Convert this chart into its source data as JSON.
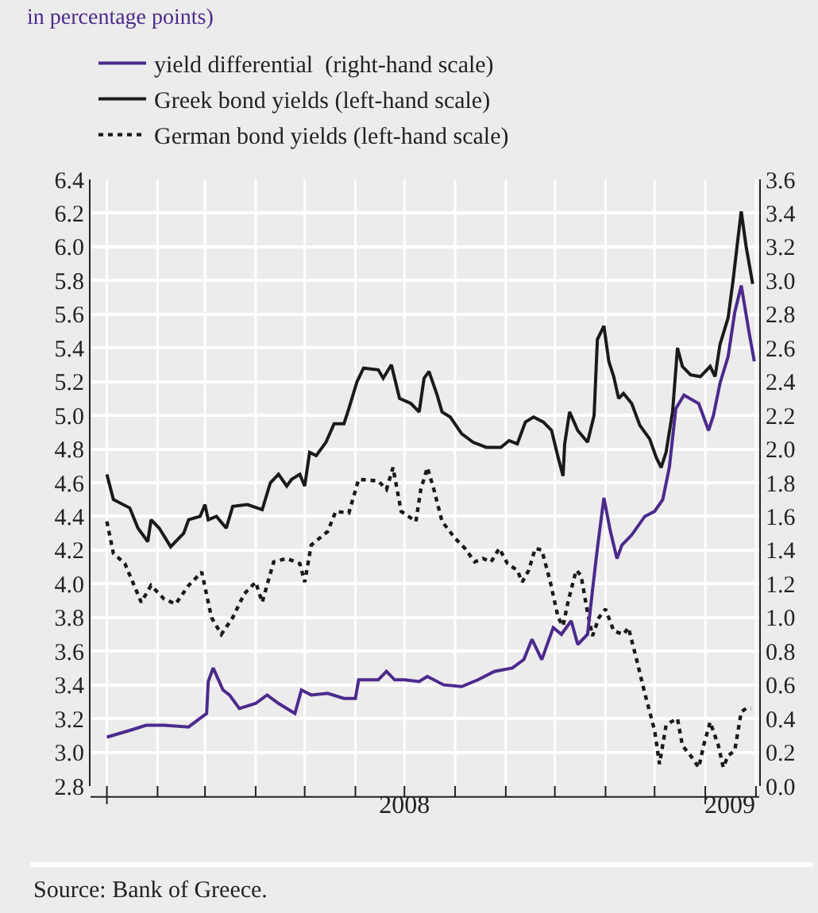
{
  "chart_data": {
    "type": "line",
    "subtitle": "in percentage points)",
    "xlim": [
      "2007-12-22",
      "2009-02-03"
    ],
    "xticks": [
      {
        "value": "2008-01-01",
        "label": null
      },
      {
        "value": "2008-02-01",
        "label": null
      },
      {
        "value": "2008-03-01",
        "label": null
      },
      {
        "value": "2008-04-01",
        "label": null
      },
      {
        "value": "2008-05-01",
        "label": null
      },
      {
        "value": "2008-06-01",
        "label": null
      },
      {
        "value": "2008-07-01",
        "label": null
      },
      {
        "value": "2008-08-01",
        "label": null
      },
      {
        "value": "2008-09-01",
        "label": null
      },
      {
        "value": "2008-10-01",
        "label": null
      },
      {
        "value": "2008-11-01",
        "label": null
      },
      {
        "value": "2008-12-01",
        "label": null
      },
      {
        "value": "2009-01-01",
        "label": null
      },
      {
        "value": "2009-02-01",
        "label": null
      },
      {
        "value": "2008-07-01",
        "label": "2008"
      },
      {
        "value": "2009-01-16",
        "label": "2009"
      }
    ],
    "ylim": [
      2.8,
      6.4
    ],
    "yticks": [
      {
        "value": 2.8,
        "label": "2.8"
      },
      {
        "value": 3.0,
        "label": "3.0"
      },
      {
        "value": 3.2,
        "label": "3.2"
      },
      {
        "value": 3.4,
        "label": "3.4"
      },
      {
        "value": 3.6,
        "label": "3.6"
      },
      {
        "value": 3.8,
        "label": "3.8"
      },
      {
        "value": 4.0,
        "label": "4.0"
      },
      {
        "value": 4.2,
        "label": "4.2"
      },
      {
        "value": 4.4,
        "label": "4.4"
      },
      {
        "value": 4.6,
        "label": "4.6"
      },
      {
        "value": 4.8,
        "label": "4.8"
      },
      {
        "value": 5.0,
        "label": "5.0"
      },
      {
        "value": 5.2,
        "label": "5.2"
      },
      {
        "value": 5.4,
        "label": "5.4"
      },
      {
        "value": 5.6,
        "label": "5.6"
      },
      {
        "value": 5.8,
        "label": "5.8"
      },
      {
        "value": 6.0,
        "label": "6.0"
      },
      {
        "value": 6.2,
        "label": "6.2"
      },
      {
        "value": 6.4,
        "label": "6.4"
      }
    ],
    "y2lim": [
      0.0,
      3.6
    ],
    "y2ticks": [
      {
        "value": 0.0,
        "label": "0.0"
      },
      {
        "value": 0.2,
        "label": "0.2"
      },
      {
        "value": 0.4,
        "label": "0.4"
      },
      {
        "value": 0.6,
        "label": "0.6"
      },
      {
        "value": 0.8,
        "label": "0.8"
      },
      {
        "value": 1.0,
        "label": "1.0"
      },
      {
        "value": 1.2,
        "label": "1.2"
      },
      {
        "value": 1.4,
        "label": "1.4"
      },
      {
        "value": 1.6,
        "label": "1.6"
      },
      {
        "value": 1.8,
        "label": "1.8"
      },
      {
        "value": 2.0,
        "label": "2.0"
      },
      {
        "value": 2.2,
        "label": "2.2"
      },
      {
        "value": 2.4,
        "label": "2.4"
      },
      {
        "value": 2.6,
        "label": "2.6"
      },
      {
        "value": 2.8,
        "label": "2.8"
      },
      {
        "value": 3.0,
        "label": "3.0"
      },
      {
        "value": 3.2,
        "label": "3.2"
      },
      {
        "value": 3.4,
        "label": "3.4"
      },
      {
        "value": 3.6,
        "label": "3.6"
      }
    ],
    "grid": true,
    "legend": "top",
    "annotations": [
      "Source: Bank of Greece."
    ],
    "series": [
      {
        "name": "yield differential  (right-hand scale)",
        "color": "#4b2a8c",
        "axis": "y2",
        "line_style": "solid",
        "x": [
          "2008-01-01",
          "2008-01-15",
          "2008-01-25",
          "2008-02-05",
          "2008-02-20",
          "2008-03-02",
          "2008-03-03",
          "2008-03-06",
          "2008-03-12",
          "2008-03-16",
          "2008-03-22",
          "2008-04-01",
          "2008-04-08",
          "2008-04-15",
          "2008-04-25",
          "2008-04-29",
          "2008-05-05",
          "2008-05-15",
          "2008-05-25",
          "2008-06-01",
          "2008-06-03",
          "2008-06-15",
          "2008-06-20",
          "2008-06-25",
          "2008-07-01",
          "2008-07-10",
          "2008-07-15",
          "2008-07-25",
          "2008-08-05",
          "2008-08-15",
          "2008-08-25",
          "2008-09-05",
          "2008-09-12",
          "2008-09-17",
          "2008-09-23",
          "2008-09-30",
          "2008-10-05",
          "2008-10-11",
          "2008-10-15",
          "2008-10-21",
          "2008-10-24",
          "2008-10-27",
          "2008-10-31",
          "2008-11-04",
          "2008-11-08",
          "2008-11-11",
          "2008-11-17",
          "2008-11-25",
          "2008-12-01",
          "2008-12-06",
          "2008-12-10",
          "2008-12-14",
          "2008-12-19",
          "2008-12-28",
          "2009-01-03",
          "2009-01-06",
          "2009-01-10",
          "2009-01-15",
          "2009-01-19",
          "2009-01-23",
          "2009-01-28",
          "2009-01-31"
        ],
        "values": [
          0.29,
          0.33,
          0.36,
          0.36,
          0.35,
          0.43,
          0.62,
          0.7,
          0.57,
          0.54,
          0.46,
          0.49,
          0.54,
          0.49,
          0.43,
          0.57,
          0.54,
          0.55,
          0.52,
          0.52,
          0.63,
          0.63,
          0.68,
          0.63,
          0.63,
          0.62,
          0.65,
          0.6,
          0.59,
          0.63,
          0.68,
          0.7,
          0.75,
          0.87,
          0.75,
          0.94,
          0.9,
          0.98,
          0.84,
          0.9,
          1.16,
          1.41,
          1.71,
          1.51,
          1.35,
          1.43,
          1.49,
          1.6,
          1.63,
          1.7,
          1.89,
          2.24,
          2.32,
          2.27,
          2.11,
          2.2,
          2.39,
          2.55,
          2.81,
          2.97,
          2.68,
          2.52
        ]
      },
      {
        "name": "Greek bond yields (left-hand scale)",
        "color": "#1a1a1a",
        "axis": "y",
        "line_style": "solid",
        "x": [
          "2008-01-01",
          "2008-01-05",
          "2008-01-15",
          "2008-01-20",
          "2008-01-26",
          "2008-01-28",
          "2008-02-02",
          "2008-02-09",
          "2008-02-17",
          "2008-02-20",
          "2008-02-27",
          "2008-03-01",
          "2008-03-03",
          "2008-03-08",
          "2008-03-14",
          "2008-03-18",
          "2008-03-27",
          "2008-04-02",
          "2008-04-05",
          "2008-04-10",
          "2008-04-15",
          "2008-04-20",
          "2008-04-23",
          "2008-04-28",
          "2008-05-01",
          "2008-05-04",
          "2008-05-08",
          "2008-05-14",
          "2008-05-19",
          "2008-05-25",
          "2008-05-28",
          "2008-06-02",
          "2008-06-06",
          "2008-06-15",
          "2008-06-18",
          "2008-06-23",
          "2008-06-28",
          "2008-07-05",
          "2008-07-10",
          "2008-07-13",
          "2008-07-16",
          "2008-07-21",
          "2008-07-24",
          "2008-07-29",
          "2008-08-05",
          "2008-08-12",
          "2008-08-20",
          "2008-08-29",
          "2008-09-03",
          "2008-09-08",
          "2008-09-13",
          "2008-09-18",
          "2008-09-24",
          "2008-09-29",
          "2008-10-03",
          "2008-10-06",
          "2008-10-07",
          "2008-10-10",
          "2008-10-15",
          "2008-10-21",
          "2008-10-25",
          "2008-10-27",
          "2008-10-31",
          "2008-11-03",
          "2008-11-06",
          "2008-11-09",
          "2008-11-12",
          "2008-11-17",
          "2008-11-22",
          "2008-11-28",
          "2008-12-02",
          "2008-12-05",
          "2008-12-08",
          "2008-12-12",
          "2008-12-15",
          "2008-12-18",
          "2008-12-23",
          "2008-12-29",
          "2009-01-04",
          "2009-01-07",
          "2009-01-10",
          "2009-01-15",
          "2009-01-18",
          "2009-01-21",
          "2009-01-23",
          "2009-01-26",
          "2009-01-30"
        ],
        "values": [
          4.65,
          4.5,
          4.45,
          4.33,
          4.25,
          4.38,
          4.33,
          4.22,
          4.3,
          4.38,
          4.4,
          4.47,
          4.38,
          4.4,
          4.33,
          4.46,
          4.47,
          4.45,
          4.44,
          4.6,
          4.65,
          4.58,
          4.62,
          4.65,
          4.58,
          4.78,
          4.76,
          4.84,
          4.95,
          4.95,
          5.04,
          5.2,
          5.28,
          5.27,
          5.22,
          5.3,
          5.1,
          5.07,
          5.02,
          5.22,
          5.26,
          5.12,
          5.02,
          4.99,
          4.89,
          4.84,
          4.81,
          4.81,
          4.85,
          4.83,
          4.96,
          4.99,
          4.96,
          4.91,
          4.75,
          4.64,
          4.83,
          5.02,
          4.91,
          4.84,
          5.0,
          5.45,
          5.53,
          5.32,
          5.23,
          5.1,
          5.13,
          5.07,
          4.94,
          4.86,
          4.75,
          4.69,
          4.78,
          5.02,
          5.4,
          5.29,
          5.24,
          5.23,
          5.29,
          5.23,
          5.42,
          5.58,
          5.8,
          6.05,
          6.21,
          6.0,
          5.78
        ]
      },
      {
        "name": "German bond yields (left-hand scale)",
        "color": "#1a1a1a",
        "axis": "y",
        "line_style": "dotted",
        "x": [
          "2008-01-01",
          "2008-01-05",
          "2008-01-12",
          "2008-01-22",
          "2008-01-28",
          "2008-02-05",
          "2008-02-12",
          "2008-02-20",
          "2008-02-28",
          "2008-03-05",
          "2008-03-11",
          "2008-03-18",
          "2008-03-25",
          "2008-04-01",
          "2008-04-05",
          "2008-04-12",
          "2008-04-20",
          "2008-04-28",
          "2008-05-01",
          "2008-05-05",
          "2008-05-15",
          "2008-05-20",
          "2008-05-28",
          "2008-06-03",
          "2008-06-15",
          "2008-06-20",
          "2008-06-24",
          "2008-06-29",
          "2008-07-08",
          "2008-07-11",
          "2008-07-15",
          "2008-07-19",
          "2008-07-24",
          "2008-08-01",
          "2008-08-07",
          "2008-08-13",
          "2008-08-18",
          "2008-08-23",
          "2008-08-28",
          "2008-09-02",
          "2008-09-08",
          "2008-09-11",
          "2008-09-15",
          "2008-09-19",
          "2008-09-23",
          "2008-09-28",
          "2008-10-03",
          "2008-10-06",
          "2008-10-09",
          "2008-10-14",
          "2008-10-17",
          "2008-10-21",
          "2008-10-24",
          "2008-10-28",
          "2008-11-01",
          "2008-11-06",
          "2008-11-12",
          "2008-11-15",
          "2008-11-20",
          "2008-11-25",
          "2008-12-01",
          "2008-12-04",
          "2008-12-08",
          "2008-12-11",
          "2008-12-15",
          "2008-12-18",
          "2008-12-23",
          "2008-12-28",
          "2008-12-31",
          "2009-01-04",
          "2009-01-09",
          "2009-01-12",
          "2009-01-15",
          "2009-01-19",
          "2009-01-23",
          "2009-01-26",
          "2009-01-29"
        ],
        "values": [
          4.37,
          4.18,
          4.12,
          3.89,
          3.99,
          3.91,
          3.88,
          3.99,
          4.07,
          3.8,
          3.7,
          3.8,
          3.94,
          4.01,
          3.89,
          4.13,
          4.15,
          4.12,
          4.01,
          4.23,
          4.31,
          4.43,
          4.42,
          4.62,
          4.61,
          4.56,
          4.69,
          4.43,
          4.37,
          4.56,
          4.69,
          4.56,
          4.37,
          4.27,
          4.21,
          4.13,
          4.15,
          4.13,
          4.21,
          4.12,
          4.08,
          4.01,
          4.08,
          4.21,
          4.2,
          4.02,
          3.8,
          3.75,
          3.89,
          4.08,
          4.05,
          3.83,
          3.69,
          3.8,
          3.85,
          3.72,
          3.7,
          3.74,
          3.55,
          3.35,
          3.13,
          2.93,
          3.16,
          3.18,
          3.2,
          3.04,
          2.98,
          2.91,
          3.04,
          3.18,
          3.04,
          2.91,
          2.98,
          3.01,
          3.24,
          3.26,
          3.26
        ]
      }
    ]
  }
}
